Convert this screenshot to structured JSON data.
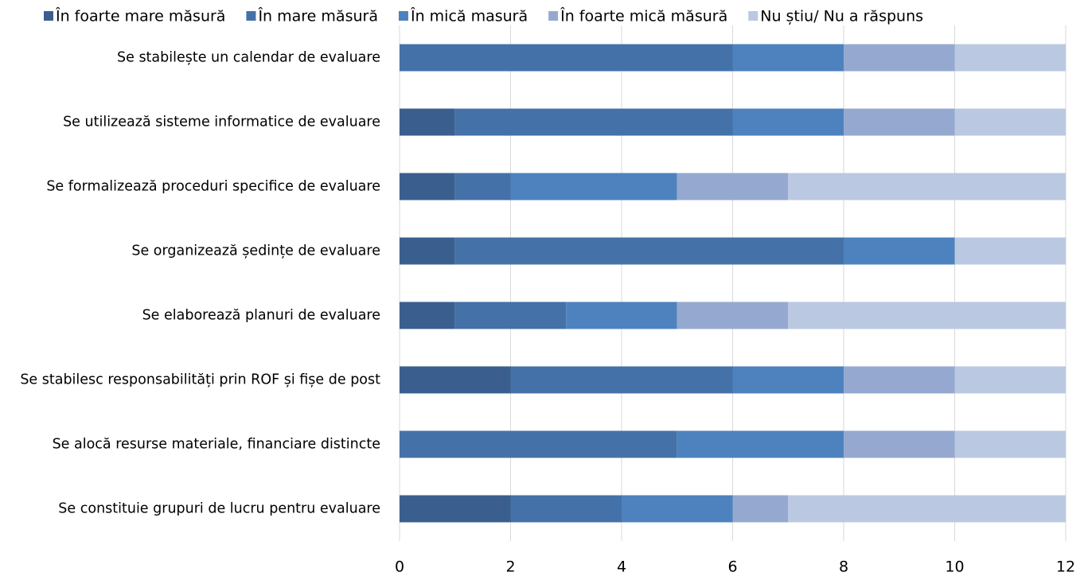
{
  "chart_data": {
    "type": "stacked-barh",
    "categories": [
      "Se stabilește un calendar de evaluare",
      "Se utilizează sisteme informatice de evaluare",
      "Se formalizează proceduri specifice de evaluare",
      "Se organizează ședințe de evaluare",
      "Se elaborează planuri de evaluare",
      "Se stabilesc responsabilități prin ROF și fișe de post",
      "Se alocă resurse materiale, financiare distincte",
      "Se constituie grupuri de lucru pentru evaluare"
    ],
    "series": [
      {
        "name": "În foarte mare măsură",
        "color": "#3a5f8f",
        "values": [
          0,
          1,
          1,
          1,
          1,
          2,
          0,
          2
        ]
      },
      {
        "name": "În mare măsură",
        "color": "#4472a8",
        "values": [
          6,
          5,
          1,
          7,
          2,
          4,
          5,
          2
        ]
      },
      {
        "name": "În mică masură",
        "color": "#4d82be",
        "values": [
          2,
          2,
          3,
          2,
          2,
          2,
          3,
          2
        ]
      },
      {
        "name": "În foarte mică măsură",
        "color": "#95a9d0",
        "values": [
          2,
          2,
          2,
          0,
          2,
          2,
          2,
          1
        ]
      },
      {
        "name": "Nu știu/ Nu a răspuns",
        "color": "#bac8e2",
        "values": [
          2,
          2,
          5,
          2,
          5,
          2,
          2,
          5
        ]
      }
    ],
    "xlim": [
      0,
      12
    ],
    "xticks": [
      0,
      2,
      4,
      6,
      8,
      10,
      12
    ],
    "grid": true,
    "legend": "top"
  }
}
